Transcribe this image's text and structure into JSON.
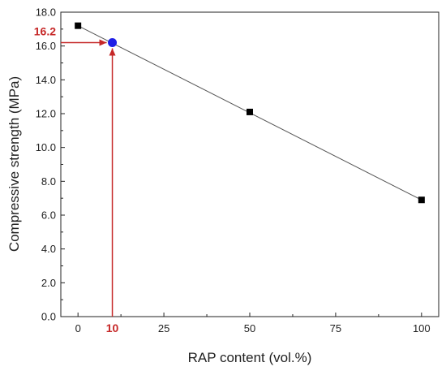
{
  "chart_data": {
    "type": "scatter",
    "title": "",
    "xlabel": "RAP content (vol.%)",
    "ylabel": "Compressive strength (MPa)",
    "xlim": [
      -5,
      105
    ],
    "ylim": [
      0,
      18
    ],
    "x_ticks": [
      0,
      25,
      50,
      75,
      100
    ],
    "x_tick_labels": [
      "0",
      "25",
      "50",
      "75",
      "100"
    ],
    "y_ticks": [
      0,
      2,
      4,
      6,
      8,
      10,
      12,
      14,
      16,
      18
    ],
    "y_tick_labels": [
      "0.0",
      "2.0",
      "4.0",
      "6.0",
      "8.0",
      "10.0",
      "12.0",
      "14.0",
      "16.0",
      "18.0"
    ],
    "grid": false,
    "legend": "none",
    "series": [
      {
        "marker": "square",
        "color": "#000000",
        "x": [
          0,
          50,
          100
        ],
        "y": [
          17.2,
          12.1,
          6.9
        ]
      }
    ],
    "trendline": {
      "color": "#555555",
      "x": [
        0,
        100
      ],
      "y": [
        17.2,
        6.9
      ]
    },
    "highlight_point": {
      "x": 10,
      "y": 16.2,
      "color": "#1f1fe6",
      "x_label": "10",
      "y_label": "16.2",
      "label_color": "#c62828",
      "arrow_color": "#c62828"
    }
  }
}
